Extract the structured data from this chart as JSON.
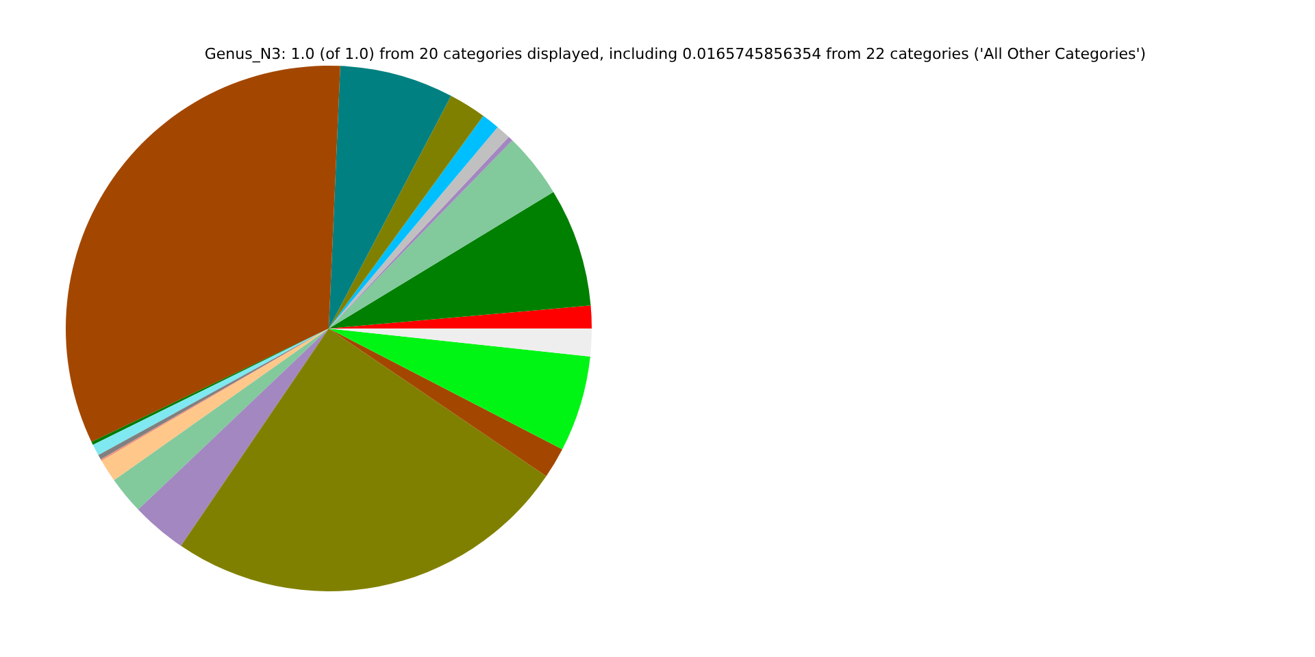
{
  "chart_data": {
    "type": "pie",
    "title": "Genus_N3: 1.0 (of 1.0) from 20 categories displayed, including 0.0165745856354 from 22 categories ('All Other Categories')",
    "categories": [
      null,
      null,
      null,
      null,
      null,
      null,
      null,
      null,
      null,
      null,
      null,
      null,
      null,
      null,
      null,
      null,
      null,
      null,
      null,
      null
    ],
    "values": [
      1.4,
      7.3,
      4.0,
      0.3,
      0.9,
      1.1,
      2.3,
      7.0,
      32.8,
      0.2,
      0.7,
      0.3,
      0.1,
      1.4,
      2.3,
      3.4,
      25.0,
      1.9,
      5.9,
      1.7
    ],
    "colors": [
      "#ff0000",
      "#008000",
      "#82c99c",
      "#a287c0",
      "#c0c0c0",
      "#00bfff",
      "#808000",
      "#008080",
      "#a34700",
      "#007a00",
      "#80e8f0",
      "#808080",
      "#f09078",
      "#ffc88a",
      "#82c99c",
      "#a387c0",
      "#808000",
      "#a34700",
      "#00f514",
      "#eeeeee"
    ]
  }
}
